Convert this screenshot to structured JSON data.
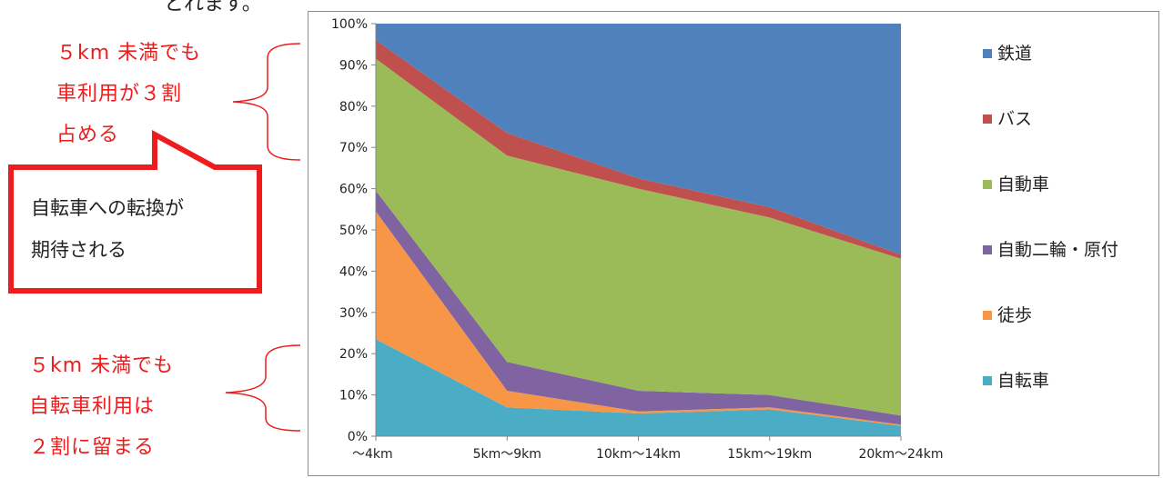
{
  "page": {
    "top_fragment": "とれます。"
  },
  "annotations": {
    "upper": [
      "５km 未満でも",
      "車利用が３割",
      "占める"
    ],
    "callout": [
      "自転車への転換が",
      "期待される"
    ],
    "lower": [
      "５km 未満でも",
      "自転車利用は",
      "２割に留まる"
    ]
  },
  "chart_data": {
    "type": "area",
    "stacked": true,
    "categories": [
      "～4km",
      "5km～9km",
      "10km～14km",
      "15km～19km",
      "20km～24km"
    ],
    "ylim": [
      0,
      100
    ],
    "yticks": [
      "0%",
      "10%",
      "20%",
      "30%",
      "40%",
      "50%",
      "60%",
      "70%",
      "80%",
      "90%",
      "100%"
    ],
    "grid": false,
    "legend_position": "right",
    "series": [
      {
        "name": "自転車",
        "color": "#4bacc6",
        "values": [
          23.5,
          7,
          5.5,
          6.5,
          2.5
        ]
      },
      {
        "name": "徒歩",
        "color": "#f79646",
        "values": [
          31,
          4,
          0.5,
          0.5,
          0.3
        ]
      },
      {
        "name": "自動二輪・原付",
        "color": "#8064a2",
        "values": [
          5,
          7,
          5,
          3,
          2.2
        ]
      },
      {
        "name": "自動車",
        "color": "#9bbb59",
        "values": [
          32,
          50,
          49,
          43,
          38
        ]
      },
      {
        "name": "バス",
        "color": "#c0504d",
        "values": [
          4.5,
          5.5,
          2.5,
          2.5,
          1
        ]
      },
      {
        "name": "鉄道",
        "color": "#4f81bd",
        "values": [
          4,
          26.5,
          37.5,
          44.5,
          56
        ]
      }
    ]
  }
}
